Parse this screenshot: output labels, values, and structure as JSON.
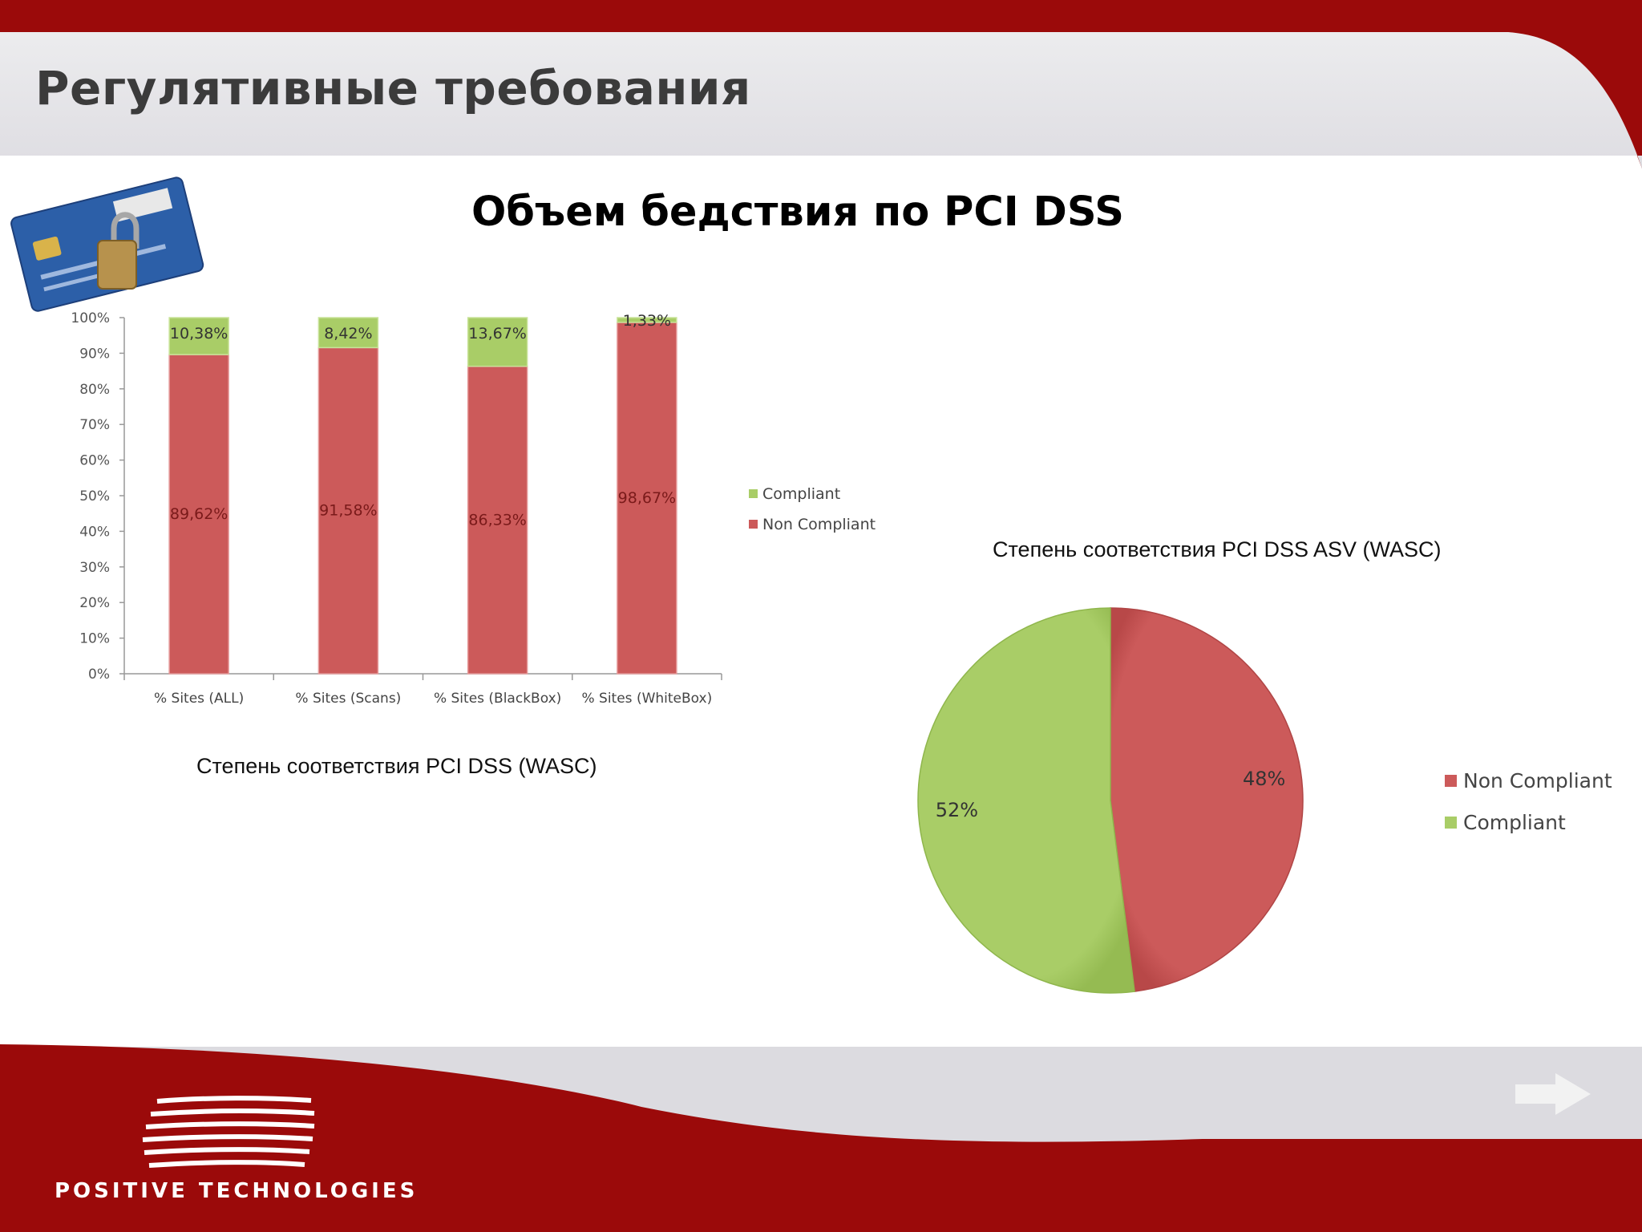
{
  "slide": {
    "title": "Регулятивные требования",
    "heading": "Объем бедствия по PCI DSS"
  },
  "colors": {
    "header_red": "#9b0a0a",
    "header_grey": "#e6e5e9",
    "non_compliant": "#cc5a5a",
    "compliant": "#a9cd67"
  },
  "chart_data": [
    {
      "type": "bar",
      "stacked": true,
      "title": "Степень соответствия PCI DSS (WASC)",
      "categories": [
        "% Sites (ALL)",
        "% Sites (Scans)",
        "% Sites (BlackBox)",
        "% Sites (WhiteBox)"
      ],
      "series": [
        {
          "name": "Non Compliant",
          "values": [
            89.62,
            91.58,
            86.33,
            98.67
          ],
          "labels": [
            "89,62%",
            "91,58%",
            "86,33%",
            "98,67%"
          ],
          "color": "#cc5a5a"
        },
        {
          "name": "Compliant",
          "values": [
            10.38,
            8.42,
            13.67,
            1.33
          ],
          "labels": [
            "10,38%",
            "8,42%",
            "13,67%",
            "1,33%"
          ],
          "color": "#a9cd67"
        }
      ],
      "legend": [
        "Compliant",
        "Non Compliant"
      ],
      "ylim": [
        0,
        100
      ],
      "yticks": [
        "0%",
        "10%",
        "20%",
        "30%",
        "40%",
        "50%",
        "60%",
        "70%",
        "80%",
        "90%",
        "100%"
      ],
      "legend_position": "right"
    },
    {
      "type": "pie",
      "title": "Степень соответствия PCI DSS ASV (WASC)",
      "slices": [
        {
          "name": "Non Compliant",
          "value": 48,
          "label": "48%",
          "color": "#cc5a5a"
        },
        {
          "name": "Compliant",
          "value": 52,
          "label": "52%",
          "color": "#a9cd67"
        }
      ],
      "legend_position": "right"
    }
  ],
  "footer": {
    "logo_text": "POSITIVE TECHNOLOGIES",
    "next_icon": "arrow-right-icon"
  }
}
